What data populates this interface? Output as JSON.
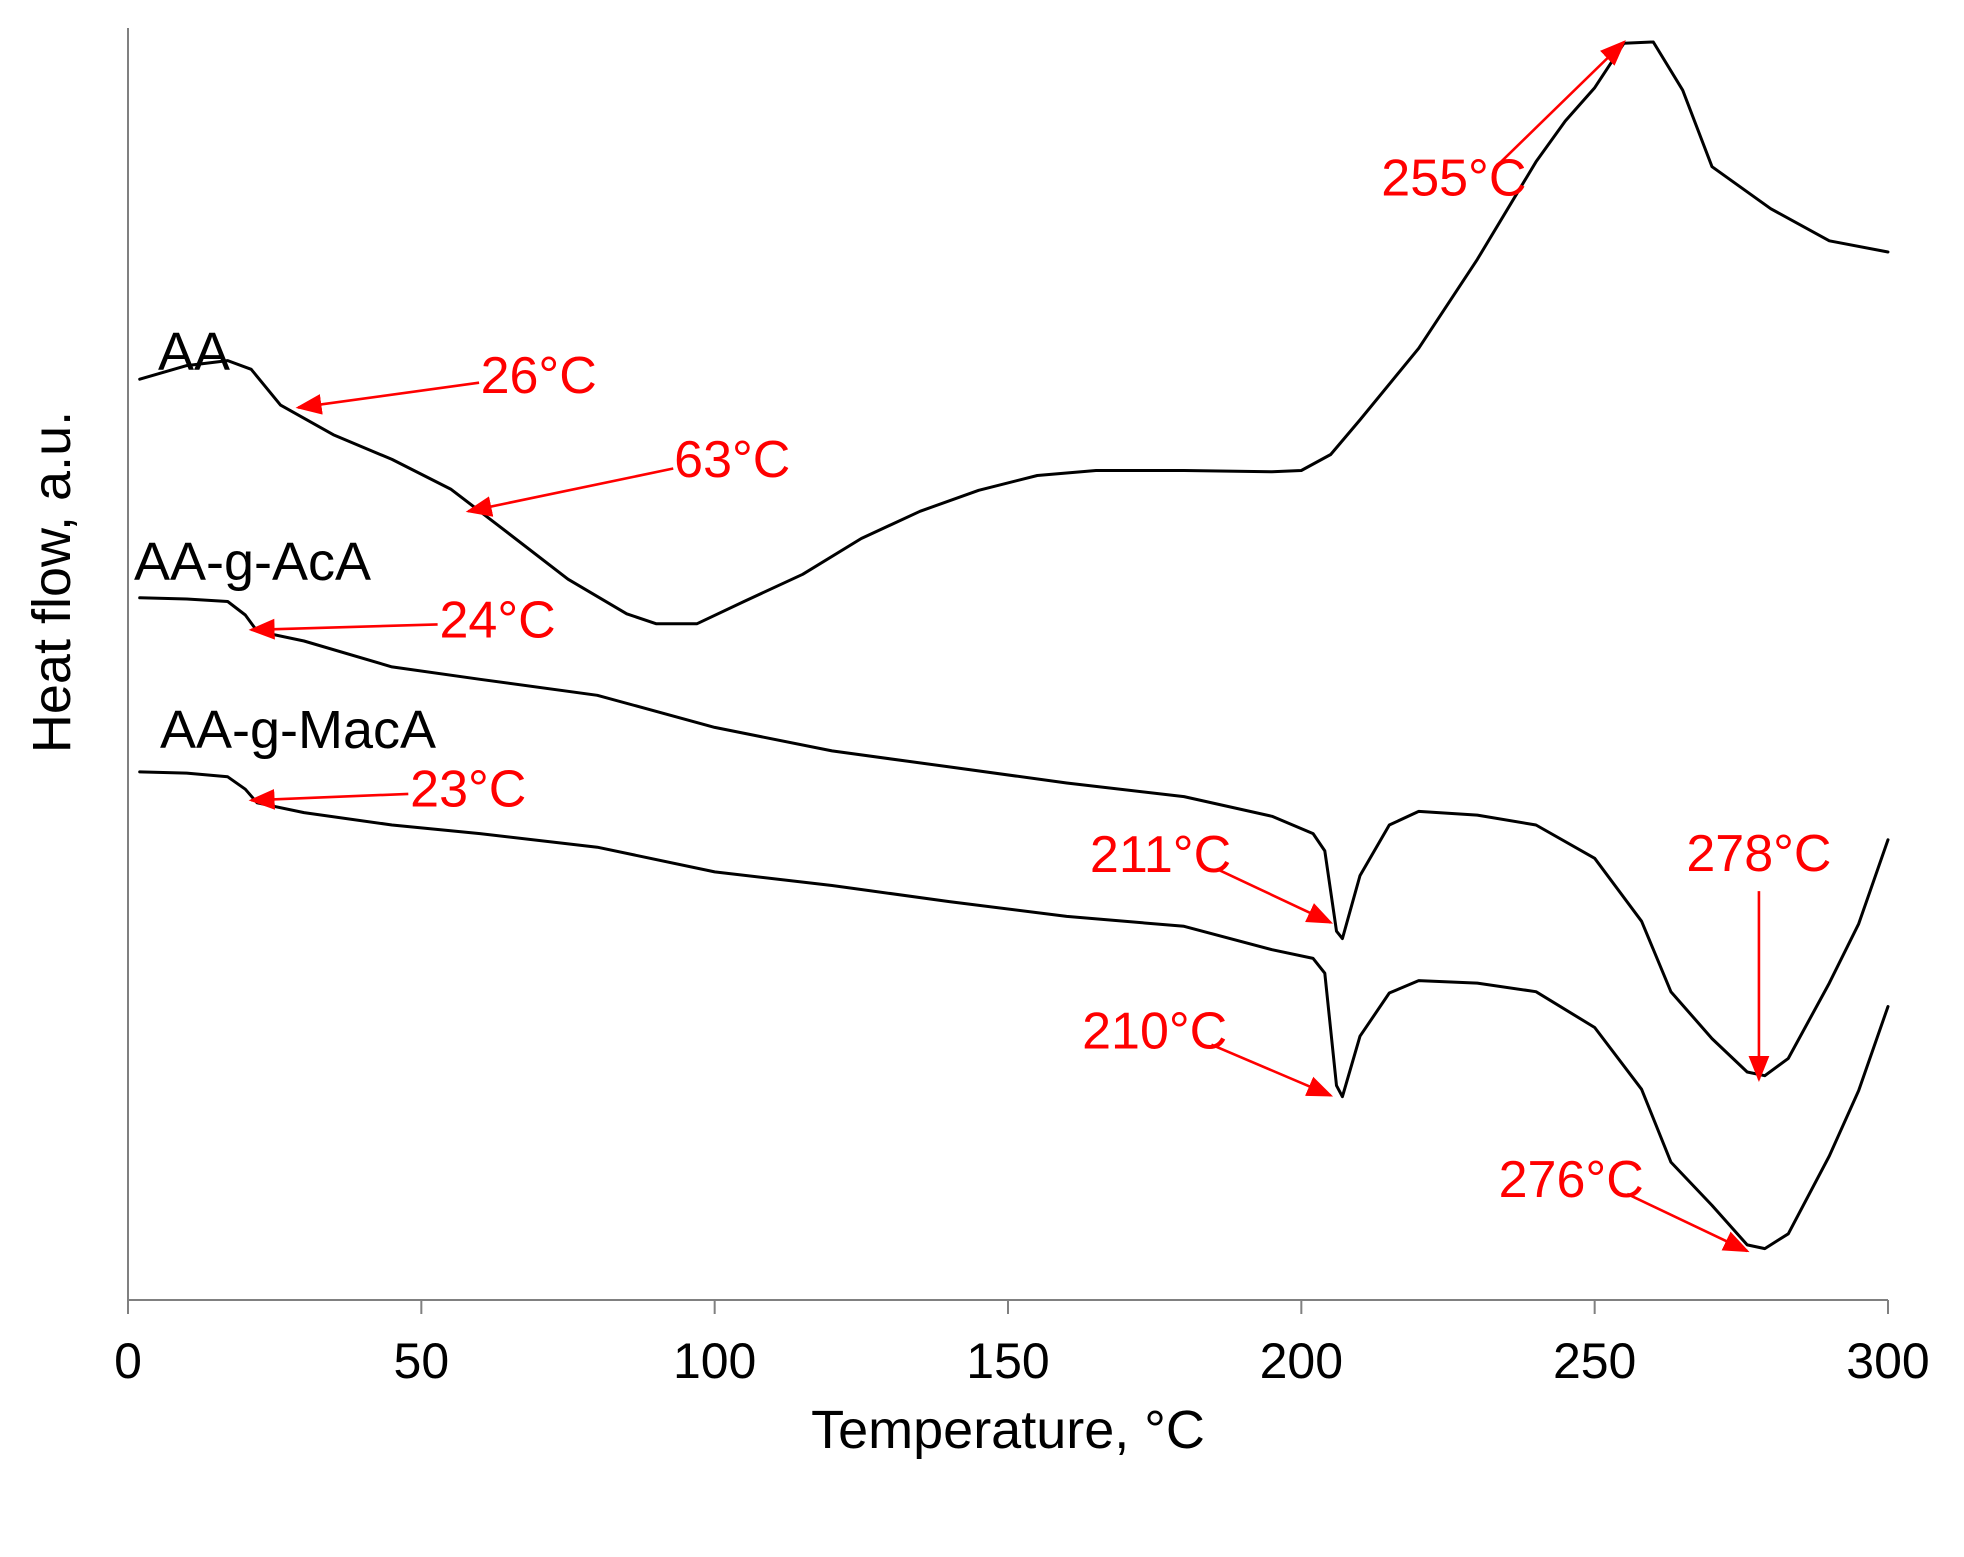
{
  "chart_data": {
    "type": "line",
    "title": "",
    "xlabel": "Temperature, °C",
    "ylabel": "Heat flow, a.u.",
    "xlim": [
      0,
      300
    ],
    "ylim": [
      0,
      1
    ],
    "x_ticks": [
      "0",
      "50",
      "100",
      "150",
      "200",
      "250",
      "300"
    ],
    "y_ticks": [],
    "grid": false,
    "legend": "none",
    "series_label_position": "left of each curve",
    "colors": {
      "curve": "#000000",
      "annotation": "#ff0000",
      "axis": "#808080"
    },
    "series": [
      {
        "name": "AA",
        "x": [
          2,
          10,
          17,
          21,
          26,
          35,
          45,
          55,
          63,
          75,
          85,
          90,
          97,
          105,
          115,
          125,
          135,
          145,
          155,
          165,
          180,
          195,
          200,
          205,
          210,
          220,
          230,
          240,
          245,
          250,
          255,
          260,
          265,
          270,
          280,
          290,
          300
        ],
        "y": [
          0.727,
          0.738,
          0.742,
          0.735,
          0.706,
          0.682,
          0.662,
          0.638,
          0.609,
          0.565,
          0.537,
          0.529,
          0.529,
          0.547,
          0.569,
          0.598,
          0.62,
          0.637,
          0.649,
          0.653,
          0.653,
          0.652,
          0.653,
          0.666,
          0.694,
          0.752,
          0.824,
          0.903,
          0.936,
          0.963,
          0.999,
          1.0,
          0.961,
          0.899,
          0.865,
          0.839,
          0.83
        ]
      },
      {
        "name": "AA-g-AcA",
        "x": [
          2,
          10,
          17,
          20,
          22,
          30,
          45,
          60,
          80,
          100,
          120,
          140,
          160,
          180,
          195,
          202,
          204,
          206,
          207,
          210,
          215,
          220,
          230,
          240,
          250,
          258,
          263,
          270,
          276,
          279,
          283,
          290,
          295,
          300
        ],
        "y": [
          0.55,
          0.549,
          0.547,
          0.536,
          0.523,
          0.515,
          0.494,
          0.484,
          0.471,
          0.445,
          0.426,
          0.413,
          0.4,
          0.389,
          0.373,
          0.359,
          0.345,
          0.28,
          0.274,
          0.325,
          0.366,
          0.377,
          0.374,
          0.366,
          0.339,
          0.288,
          0.231,
          0.193,
          0.166,
          0.163,
          0.177,
          0.238,
          0.286,
          0.354
        ]
      },
      {
        "name": "AA-g-MacA",
        "x": [
          2,
          10,
          17,
          20,
          22,
          30,
          45,
          60,
          80,
          100,
          120,
          140,
          160,
          180,
          195,
          202,
          204,
          206,
          207,
          210,
          215,
          220,
          230,
          240,
          250,
          258,
          263,
          270,
          276,
          279,
          283,
          290,
          295,
          300
        ],
        "y": [
          0.409,
          0.408,
          0.405,
          0.395,
          0.384,
          0.376,
          0.366,
          0.359,
          0.348,
          0.328,
          0.317,
          0.304,
          0.292,
          0.284,
          0.265,
          0.258,
          0.246,
          0.155,
          0.146,
          0.195,
          0.23,
          0.24,
          0.238,
          0.231,
          0.202,
          0.152,
          0.093,
          0.058,
          0.026,
          0.023,
          0.035,
          0.098,
          0.151,
          0.219
        ]
      }
    ],
    "annotations": [
      {
        "label": "255°C",
        "series": "AA",
        "x": 255,
        "y": 1.0,
        "text_x": 226,
        "text_y": 0.887
      },
      {
        "label": "26°C",
        "series": "AA",
        "x": 29,
        "y": 0.704,
        "text_x": 70,
        "text_y": 0.727
      },
      {
        "label": "63°C",
        "series": "AA",
        "x": 58,
        "y": 0.62,
        "text_x": 103,
        "text_y": 0.659
      },
      {
        "label": "24°C",
        "series": "AA-g-AcA",
        "x": 21,
        "y": 0.524,
        "text_x": 63,
        "text_y": 0.529
      },
      {
        "label": "23°C",
        "series": "AA-g-MacA",
        "x": 21,
        "y": 0.386,
        "text_x": 58,
        "text_y": 0.392
      },
      {
        "label": "211°C",
        "series": "AA-g-AcA",
        "x": 205,
        "y": 0.287,
        "text_x": 176,
        "text_y": 0.339
      },
      {
        "label": "210°C",
        "series": "AA-g-MacA",
        "x": 205,
        "y": 0.147,
        "text_x": 175,
        "text_y": 0.196
      },
      {
        "label": "278°C",
        "series": "AA-g-AcA",
        "x": 278,
        "y": 0.16,
        "text_x": 278,
        "text_y": 0.34
      },
      {
        "label": "276°C",
        "series": "AA-g-MacA",
        "x": 276,
        "y": 0.021,
        "text_x": 246,
        "text_y": 0.076
      }
    ]
  }
}
